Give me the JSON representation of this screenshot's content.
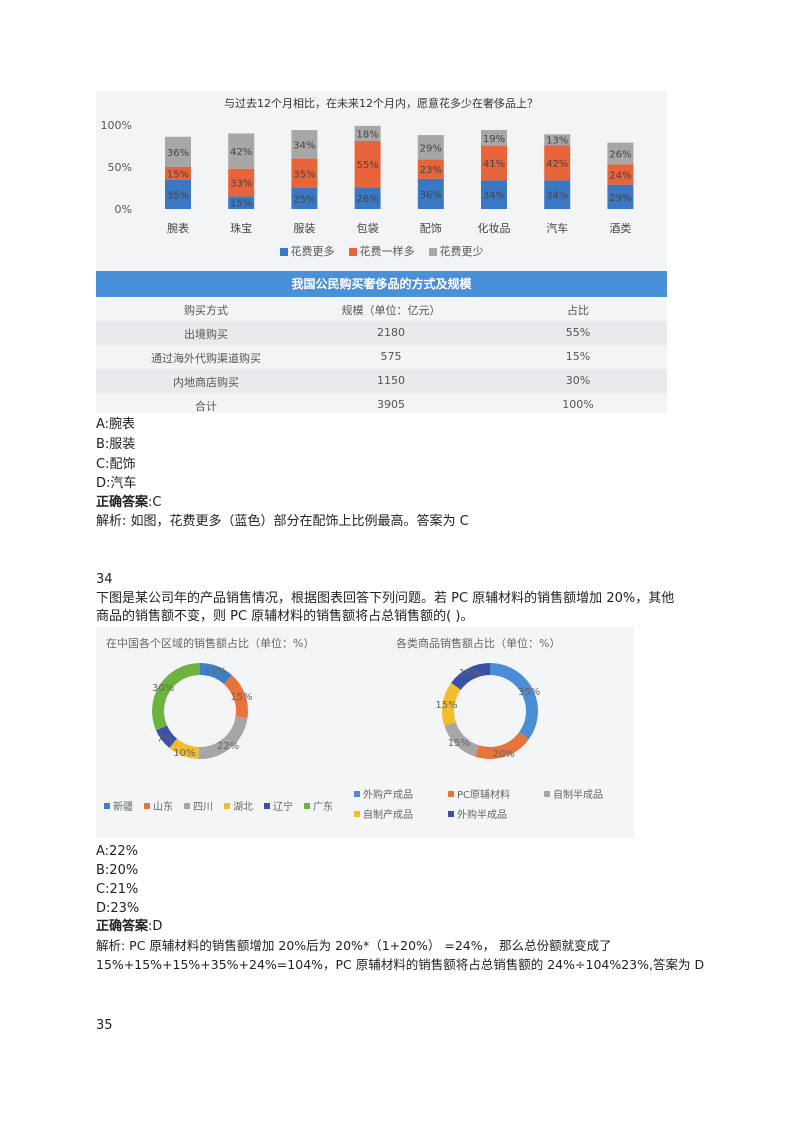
{
  "figure1": {
    "chart_data": {
      "type": "bar",
      "stacked": true,
      "title": "与过去12个月相比，在未来12个月内，愿意花多少在奢侈品上？",
      "yticks": [
        "100%",
        "50%",
        "0%"
      ],
      "categories": [
        "腕表",
        "珠宝",
        "服装",
        "包袋",
        "配饰",
        "化妆品",
        "汽车",
        "酒类"
      ],
      "series": [
        {
          "name": "花费更多",
          "color": "#3b78c4",
          "values": [
            35,
            15,
            25,
            26,
            36,
            34,
            34,
            29
          ]
        },
        {
          "name": "花费一样多",
          "color": "#e8643a",
          "values": [
            15,
            33,
            35,
            55,
            23,
            41,
            42,
            24
          ]
        },
        {
          "name": "花费更少",
          "color": "#a7a7a7",
          "values": [
            36,
            42,
            34,
            18,
            29,
            19,
            13,
            26
          ]
        }
      ],
      "legend": "bottom"
    },
    "table": {
      "title": "我国公民购买奢侈品的方式及规模",
      "headers": [
        "购买方式",
        "规模（单位：亿元）",
        "占比"
      ],
      "rows": [
        [
          "出境购买",
          "2180",
          "55%"
        ],
        [
          "通过海外代购渠道购买",
          "575",
          "15%"
        ],
        [
          "内地商店购买",
          "1150",
          "30%"
        ],
        [
          "合计",
          "3905",
          "100%"
        ]
      ]
    }
  },
  "q33": {
    "options": [
      "A:腕表",
      "B:服装",
      "C:配饰",
      "D:汽车"
    ],
    "answer_label": "正确答案",
    "answer_value": ":C",
    "analysis": "解析: 如图，花费更多（蓝色）部分在配饰上比例最高。答案为 C"
  },
  "q34": {
    "number": "34",
    "stem_line1": "下图是某公司年的产品销售情况，根据图表回答下列问题。若 PC 原辅材料的销售额增加 20%，其他",
    "stem_line2": "商品的销售额不变，则 PC 原辅材料的销售额将占总销售额的( )。",
    "options": [
      "A:22%",
      "B:20%",
      "C:21%",
      "D:23%"
    ],
    "answer_label": "正确答案",
    "answer_value": ":D",
    "analysis_line1": "解析: PC 原辅材料的销售额增加 20%后为 20%*（1+20%） =24%， 那么总份额就变成了",
    "analysis_line2": "15%+15%+15%+35%+24%=104%，PC 原辅材料的销售额将占总销售额的 24%÷104%23%,答案为 D"
  },
  "q35": {
    "number": "35"
  },
  "figure2": {
    "chart_data": [
      {
        "type": "pie",
        "title": "在中国各个区域的销售额占比（单位：%）",
        "labels": [
          "新疆",
          "山东",
          "四川",
          "湖北",
          "辽宁",
          "广东"
        ],
        "values": [
          11,
          15,
          22,
          10,
          7,
          30
        ],
        "colors": [
          "#3f7fc6",
          "#e8743b",
          "#a6a6a6",
          "#f2bd2c",
          "#3a4fa5",
          "#6cb33f"
        ],
        "value_labels": [
          "11%",
          "15%",
          "22%",
          "10%",
          "7%",
          "30%"
        ]
      },
      {
        "type": "pie",
        "title": "各类商品销售额占比（单位：%）",
        "labels": [
          "外购产成品",
          "PC原辅材料",
          "自制半成品",
          "自制产成品",
          "外购半成品"
        ],
        "values": [
          35,
          20,
          15,
          15,
          15
        ],
        "colors": [
          "#4c8ed6",
          "#e8743b",
          "#a6a6a6",
          "#f2bd2c",
          "#3a4fa5"
        ],
        "value_labels": [
          "35%",
          "20%",
          "15%",
          "15%",
          "15%"
        ]
      }
    ]
  }
}
